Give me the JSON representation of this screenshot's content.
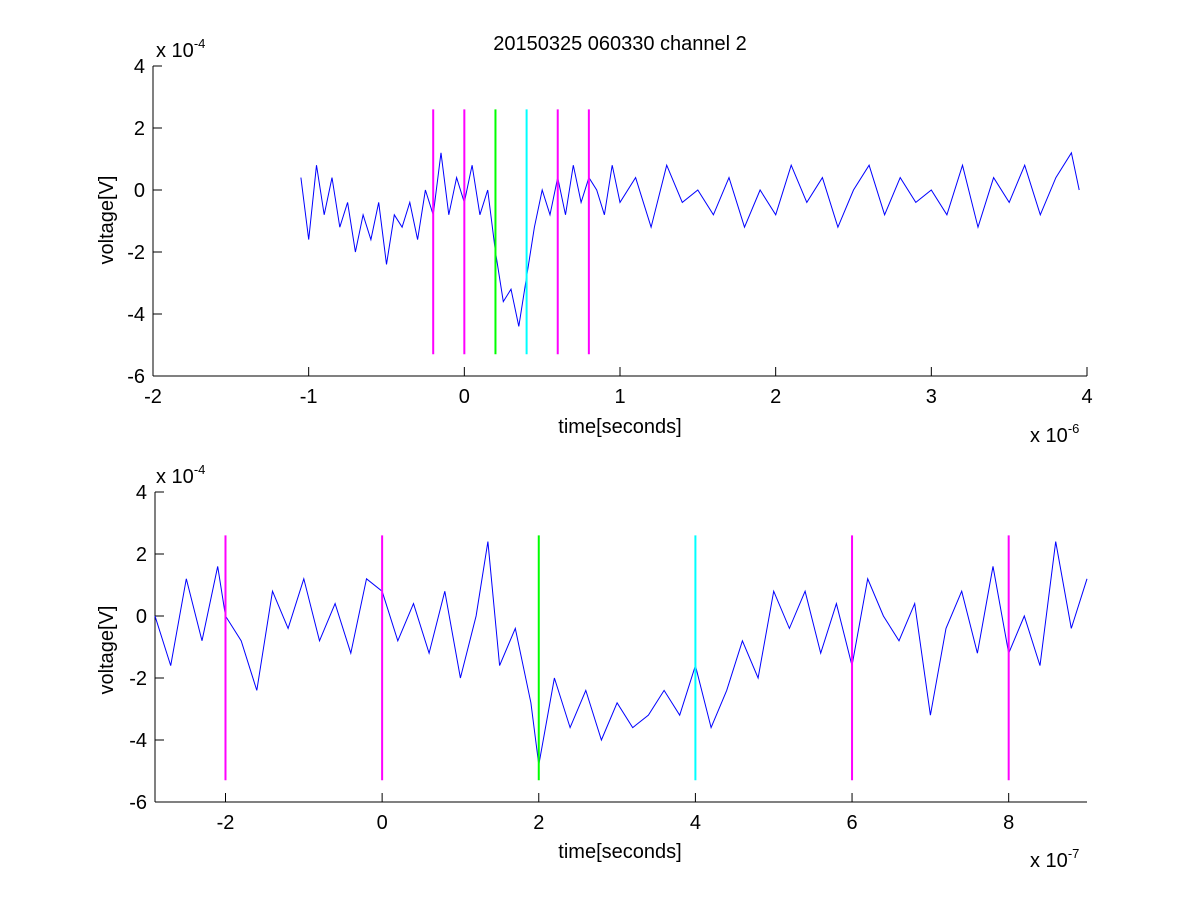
{
  "figure": {
    "title": "20150325 060330 channel 2"
  },
  "chart_data": [
    {
      "type": "line",
      "title": "20150325 060330 channel 2",
      "xlabel": "time[seconds]",
      "ylabel": "voltage[V]",
      "x_multiplier": "x 10",
      "x_exponent": "-6",
      "y_multiplier": "x 10",
      "y_exponent": "-4",
      "xlim": [
        -2,
        4
      ],
      "ylim": [
        -6,
        4
      ],
      "xticks": [
        -2,
        -1,
        0,
        1,
        2,
        3,
        4
      ],
      "yticks": [
        -6,
        -4,
        -2,
        0,
        2,
        4
      ],
      "xtick_labels": [
        "-2",
        "-1",
        "0",
        "1",
        "2",
        "3",
        "4"
      ],
      "ytick_labels": [
        "-6",
        "-4",
        "-2",
        "0",
        "2",
        "4"
      ],
      "grid": false,
      "series": [
        {
          "color": "#0000ff",
          "x": [
            -1.05,
            -1.0,
            -0.95,
            -0.9,
            -0.85,
            -0.8,
            -0.75,
            -0.7,
            -0.65,
            -0.6,
            -0.55,
            -0.5,
            -0.45,
            -0.4,
            -0.35,
            -0.3,
            -0.25,
            -0.2,
            -0.15,
            -0.1,
            -0.05,
            0.0,
            0.05,
            0.1,
            0.15,
            0.2,
            0.25,
            0.3,
            0.35,
            0.4,
            0.45,
            0.5,
            0.55,
            0.6,
            0.65,
            0.7,
            0.75,
            0.8,
            0.85,
            0.9,
            0.95,
            1.0,
            1.1,
            1.2,
            1.3,
            1.4,
            1.5,
            1.6,
            1.7,
            1.8,
            1.9,
            2.0,
            2.1,
            2.2,
            2.3,
            2.4,
            2.5,
            2.6,
            2.7,
            2.8,
            2.9,
            3.0,
            3.1,
            3.2,
            3.3,
            3.4,
            3.5,
            3.6,
            3.7,
            3.8,
            3.9,
            3.95
          ],
          "y": [
            0.4,
            -1.6,
            0.8,
            -0.8,
            0.4,
            -1.2,
            -0.4,
            -2.0,
            -0.8,
            -1.6,
            -0.4,
            -2.4,
            -0.8,
            -1.2,
            -0.4,
            -1.6,
            0.0,
            -0.8,
            1.2,
            -0.8,
            0.4,
            -0.4,
            0.8,
            -0.8,
            0.0,
            -2.0,
            -3.6,
            -3.2,
            -4.4,
            -2.8,
            -1.2,
            0.0,
            -0.8,
            0.4,
            -0.8,
            0.8,
            -0.4,
            0.4,
            0.0,
            -0.8,
            0.8,
            -0.4,
            0.4,
            -1.2,
            0.8,
            -0.4,
            0.0,
            -0.8,
            0.4,
            -1.2,
            0.0,
            -0.8,
            0.8,
            -0.4,
            0.4,
            -1.2,
            0.0,
            0.8,
            -0.8,
            0.4,
            -0.4,
            0.0,
            -0.8,
            0.8,
            -1.2,
            0.4,
            -0.4,
            0.8,
            -0.8,
            0.4,
            1.2,
            0.0
          ]
        }
      ],
      "markers": [
        {
          "x": -0.2,
          "color": "#ff00ff"
        },
        {
          "x": 0.0,
          "color": "#ff00ff"
        },
        {
          "x": 0.2,
          "color": "#00ff00"
        },
        {
          "x": 0.4,
          "color": "#00ffff"
        },
        {
          "x": 0.6,
          "color": "#ff00ff"
        },
        {
          "x": 0.8,
          "color": "#ff00ff"
        }
      ],
      "marker_yrange": [
        -5.3,
        2.6
      ]
    },
    {
      "type": "line",
      "xlabel": "time[seconds]",
      "ylabel": "voltage[V]",
      "x_multiplier": "x 10",
      "x_exponent": "-7",
      "y_multiplier": "x 10",
      "y_exponent": "-4",
      "xlim": [
        -2.9,
        9.0
      ],
      "ylim": [
        -6,
        4
      ],
      "xticks": [
        -2,
        0,
        2,
        4,
        6,
        8
      ],
      "yticks": [
        -6,
        -4,
        -2,
        0,
        2,
        4
      ],
      "xtick_labels": [
        "-2",
        "0",
        "2",
        "4",
        "6",
        "8"
      ],
      "ytick_labels": [
        "-6",
        "-4",
        "-2",
        "0",
        "2",
        "4"
      ],
      "grid": false,
      "series": [
        {
          "color": "#0000ff",
          "x": [
            -2.9,
            -2.7,
            -2.5,
            -2.3,
            -2.1,
            -2.0,
            -1.8,
            -1.6,
            -1.4,
            -1.2,
            -1.0,
            -0.8,
            -0.6,
            -0.4,
            -0.2,
            0.0,
            0.2,
            0.4,
            0.6,
            0.8,
            1.0,
            1.2,
            1.35,
            1.5,
            1.7,
            1.9,
            2.0,
            2.2,
            2.4,
            2.6,
            2.8,
            3.0,
            3.2,
            3.4,
            3.6,
            3.8,
            4.0,
            4.2,
            4.4,
            4.6,
            4.8,
            5.0,
            5.2,
            5.4,
            5.6,
            5.8,
            6.0,
            6.2,
            6.4,
            6.6,
            6.8,
            7.0,
            7.2,
            7.4,
            7.6,
            7.8,
            8.0,
            8.2,
            8.4,
            8.6,
            8.8,
            9.0
          ],
          "y": [
            0.0,
            -1.6,
            1.2,
            -0.8,
            1.6,
            0.0,
            -0.8,
            -2.4,
            0.8,
            -0.4,
            1.2,
            -0.8,
            0.4,
            -1.2,
            1.2,
            0.8,
            -0.8,
            0.4,
            -1.2,
            0.8,
            -2.0,
            0.0,
            2.4,
            -1.6,
            -0.4,
            -2.8,
            -4.8,
            -2.0,
            -3.6,
            -2.4,
            -4.0,
            -2.8,
            -3.6,
            -3.2,
            -2.4,
            -3.2,
            -1.6,
            -3.6,
            -2.4,
            -0.8,
            -2.0,
            0.8,
            -0.4,
            0.8,
            -1.2,
            0.4,
            -1.6,
            1.2,
            0.0,
            -0.8,
            0.4,
            -3.2,
            -0.4,
            0.8,
            -1.2,
            1.6,
            -1.2,
            0.0,
            -1.6,
            2.4,
            -0.4,
            1.2
          ]
        }
      ],
      "markers": [
        {
          "x": -2.0,
          "color": "#ff00ff"
        },
        {
          "x": 0.0,
          "color": "#ff00ff"
        },
        {
          "x": 2.0,
          "color": "#00ff00"
        },
        {
          "x": 4.0,
          "color": "#00ffff"
        },
        {
          "x": 6.0,
          "color": "#ff00ff"
        },
        {
          "x": 8.0,
          "color": "#ff00ff"
        }
      ],
      "marker_yrange": [
        -5.3,
        2.6
      ]
    }
  ]
}
